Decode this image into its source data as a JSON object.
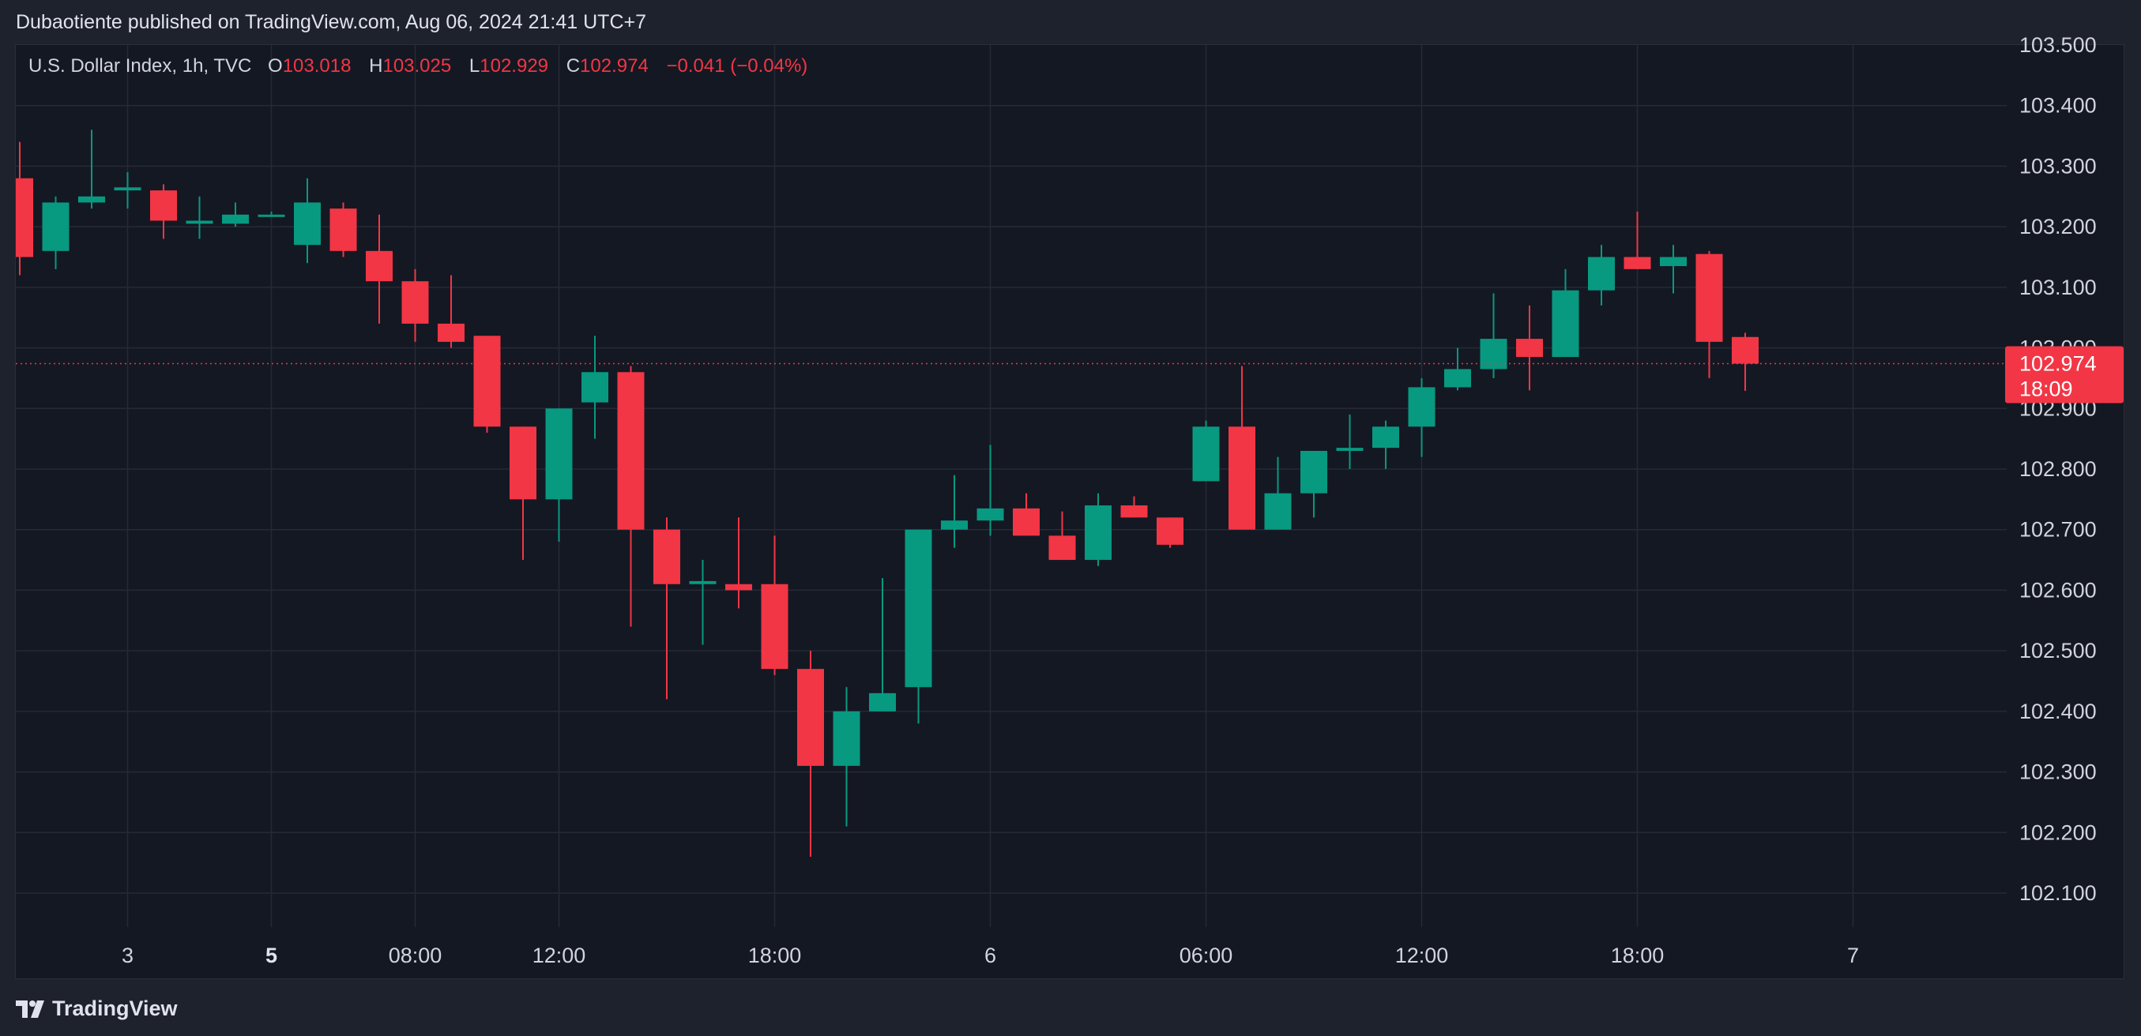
{
  "header": {
    "published": "Dubaotiente published on TradingView.com, Aug 06, 2024 21:41 UTC+7"
  },
  "legend": {
    "symbol": "U.S. Dollar Index, 1h, TVC",
    "open_label": "O",
    "open": "103.018",
    "high_label": "H",
    "high": "103.025",
    "low_label": "L",
    "low": "102.929",
    "close_label": "C",
    "close": "102.974",
    "change": "−0.041 (−0.04%)"
  },
  "price_tag": {
    "price": "102.974",
    "countdown": "18:09"
  },
  "footer": {
    "logo_text": "TradingView"
  },
  "colors": {
    "up": "#089981",
    "down": "#f23645",
    "background": "#141823",
    "grid": "#252a36",
    "text": "#d1d4dc"
  },
  "chart_data": {
    "type": "candlestick",
    "interval": "1h",
    "y_range": [
      102.05,
      103.5
    ],
    "grid": true,
    "y_ticks": [
      "102.100",
      "102.200",
      "102.300",
      "102.400",
      "102.500",
      "102.600",
      "102.700",
      "102.800",
      "102.900",
      "103.000",
      "103.100",
      "103.200",
      "103.300",
      "103.400",
      "103.500"
    ],
    "x_ticks": [
      {
        "label": "3",
        "index": 3,
        "bold": false
      },
      {
        "label": "5",
        "index": 7,
        "bold": true
      },
      {
        "label": "08:00",
        "index": 11,
        "bold": false
      },
      {
        "label": "12:00",
        "index": 15,
        "bold": false
      },
      {
        "label": "18:00",
        "index": 21,
        "bold": false
      },
      {
        "label": "6",
        "index": 27,
        "bold": false
      },
      {
        "label": "06:00",
        "index": 33,
        "bold": false
      },
      {
        "label": "12:00",
        "index": 39,
        "bold": false
      },
      {
        "label": "18:00",
        "index": 45,
        "bold": false
      },
      {
        "label": "7",
        "index": 51,
        "bold": false
      }
    ],
    "last_price": 102.974,
    "candles": [
      {
        "o": 103.28,
        "h": 103.34,
        "l": 103.12,
        "c": 103.15
      },
      {
        "o": 103.16,
        "h": 103.25,
        "l": 103.13,
        "c": 103.24
      },
      {
        "o": 103.24,
        "h": 103.36,
        "l": 103.23,
        "c": 103.25
      },
      {
        "o": 103.26,
        "h": 103.29,
        "l": 103.23,
        "c": 103.265
      },
      {
        "o": 103.26,
        "h": 103.27,
        "l": 103.18,
        "c": 103.21
      },
      {
        "o": 103.205,
        "h": 103.25,
        "l": 103.18,
        "c": 103.21
      },
      {
        "o": 103.205,
        "h": 103.24,
        "l": 103.2,
        "c": 103.22
      },
      {
        "o": 103.22,
        "h": 103.225,
        "l": 103.22,
        "c": 103.22
      },
      {
        "o": 103.17,
        "h": 103.28,
        "l": 103.14,
        "c": 103.24
      },
      {
        "o": 103.23,
        "h": 103.24,
        "l": 103.15,
        "c": 103.16
      },
      {
        "o": 103.16,
        "h": 103.22,
        "l": 103.04,
        "c": 103.11
      },
      {
        "o": 103.11,
        "h": 103.13,
        "l": 103.01,
        "c": 103.04
      },
      {
        "o": 103.04,
        "h": 103.12,
        "l": 103.0,
        "c": 103.01
      },
      {
        "o": 103.02,
        "h": 103.02,
        "l": 102.86,
        "c": 102.87
      },
      {
        "o": 102.87,
        "h": 102.87,
        "l": 102.65,
        "c": 102.75
      },
      {
        "o": 102.75,
        "h": 102.9,
        "l": 102.68,
        "c": 102.9
      },
      {
        "o": 102.91,
        "h": 103.02,
        "l": 102.85,
        "c": 102.96
      },
      {
        "o": 102.96,
        "h": 102.97,
        "l": 102.54,
        "c": 102.7
      },
      {
        "o": 102.7,
        "h": 102.72,
        "l": 102.42,
        "c": 102.61
      },
      {
        "o": 102.61,
        "h": 102.65,
        "l": 102.51,
        "c": 102.615
      },
      {
        "o": 102.61,
        "h": 102.72,
        "l": 102.57,
        "c": 102.6
      },
      {
        "o": 102.61,
        "h": 102.69,
        "l": 102.46,
        "c": 102.47
      },
      {
        "o": 102.47,
        "h": 102.5,
        "l": 102.16,
        "c": 102.31
      },
      {
        "o": 102.31,
        "h": 102.44,
        "l": 102.21,
        "c": 102.4
      },
      {
        "o": 102.4,
        "h": 102.62,
        "l": 102.4,
        "c": 102.43
      },
      {
        "o": 102.44,
        "h": 102.7,
        "l": 102.38,
        "c": 102.7
      },
      {
        "o": 102.7,
        "h": 102.79,
        "l": 102.67,
        "c": 102.715
      },
      {
        "o": 102.715,
        "h": 102.84,
        "l": 102.69,
        "c": 102.735
      },
      {
        "o": 102.735,
        "h": 102.76,
        "l": 102.69,
        "c": 102.69
      },
      {
        "o": 102.69,
        "h": 102.73,
        "l": 102.65,
        "c": 102.65
      },
      {
        "o": 102.65,
        "h": 102.76,
        "l": 102.64,
        "c": 102.74
      },
      {
        "o": 102.74,
        "h": 102.755,
        "l": 102.72,
        "c": 102.72
      },
      {
        "o": 102.72,
        "h": 102.72,
        "l": 102.67,
        "c": 102.675
      },
      {
        "o": 102.78,
        "h": 102.88,
        "l": 102.78,
        "c": 102.87
      },
      {
        "o": 102.87,
        "h": 102.97,
        "l": 102.7,
        "c": 102.7
      },
      {
        "o": 102.7,
        "h": 102.82,
        "l": 102.7,
        "c": 102.76
      },
      {
        "o": 102.76,
        "h": 102.83,
        "l": 102.72,
        "c": 102.83
      },
      {
        "o": 102.83,
        "h": 102.89,
        "l": 102.8,
        "c": 102.835
      },
      {
        "o": 102.835,
        "h": 102.88,
        "l": 102.8,
        "c": 102.87
      },
      {
        "o": 102.87,
        "h": 102.95,
        "l": 102.82,
        "c": 102.935
      },
      {
        "o": 102.935,
        "h": 103.0,
        "l": 102.93,
        "c": 102.965
      },
      {
        "o": 102.965,
        "h": 103.09,
        "l": 102.95,
        "c": 103.015
      },
      {
        "o": 103.015,
        "h": 103.07,
        "l": 102.93,
        "c": 102.985
      },
      {
        "o": 102.985,
        "h": 103.13,
        "l": 102.985,
        "c": 103.095
      },
      {
        "o": 103.095,
        "h": 103.17,
        "l": 103.07,
        "c": 103.15
      },
      {
        "o": 103.15,
        "h": 103.225,
        "l": 103.13,
        "c": 103.13
      },
      {
        "o": 103.135,
        "h": 103.17,
        "l": 103.09,
        "c": 103.15
      },
      {
        "o": 103.155,
        "h": 103.16,
        "l": 102.95,
        "c": 103.01
      },
      {
        "o": 103.018,
        "h": 103.025,
        "l": 102.929,
        "c": 102.974
      }
    ]
  }
}
